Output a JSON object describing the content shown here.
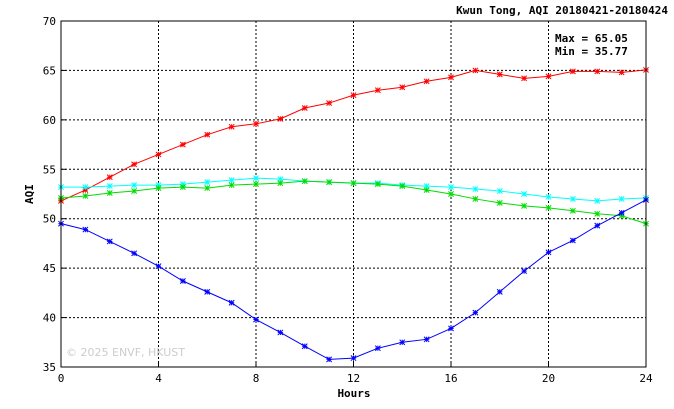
{
  "chart_data": {
    "type": "line",
    "title": "Kwun Tong, AQI 20180421-20180424",
    "xlabel": "Hours",
    "ylabel": "AQI",
    "xlim": [
      0,
      24
    ],
    "ylim": [
      35,
      70
    ],
    "xticks": [
      0,
      4,
      8,
      12,
      16,
      20,
      24
    ],
    "yticks": [
      35,
      40,
      45,
      50,
      55,
      60,
      65,
      70
    ],
    "grid": true,
    "stats": {
      "max": "Max = 65.05",
      "min": "Min = 35.77"
    },
    "watermark": "© 2025 ENVF, HKUST",
    "x": [
      0,
      1,
      2,
      3,
      4,
      5,
      6,
      7,
      8,
      9,
      10,
      11,
      12,
      13,
      14,
      15,
      16,
      17,
      18,
      19,
      20,
      21,
      22,
      23,
      24
    ],
    "series": [
      {
        "color": "#ff0000",
        "values": [
          51.8,
          52.9,
          54.2,
          55.5,
          56.5,
          57.5,
          58.5,
          59.3,
          59.6,
          60.1,
          61.2,
          61.7,
          62.5,
          63.0,
          63.3,
          63.9,
          64.3,
          65.0,
          64.6,
          64.2,
          64.4,
          64.9,
          64.9,
          64.8,
          65.05
        ]
      },
      {
        "color": "#00ffff",
        "values": [
          53.2,
          53.2,
          53.3,
          53.4,
          53.4,
          53.5,
          53.7,
          53.9,
          54.1,
          54.0,
          53.8,
          53.7,
          53.6,
          53.6,
          53.4,
          53.3,
          53.2,
          53.0,
          52.8,
          52.5,
          52.2,
          52.0,
          51.8,
          52.0,
          52.1
        ]
      },
      {
        "color": "#00dd00",
        "values": [
          52.1,
          52.3,
          52.6,
          52.8,
          53.1,
          53.2,
          53.1,
          53.4,
          53.5,
          53.6,
          53.8,
          53.7,
          53.6,
          53.5,
          53.3,
          52.9,
          52.5,
          52.0,
          51.6,
          51.3,
          51.1,
          50.8,
          50.5,
          50.3,
          49.5
        ]
      },
      {
        "color": "#0000ff",
        "values": [
          49.5,
          48.9,
          47.7,
          46.5,
          45.2,
          43.7,
          42.6,
          41.5,
          39.8,
          38.5,
          37.1,
          35.77,
          35.9,
          36.9,
          37.5,
          37.8,
          38.9,
          40.5,
          42.6,
          44.7,
          46.6,
          47.8,
          49.3,
          50.6,
          51.9
        ]
      }
    ]
  }
}
